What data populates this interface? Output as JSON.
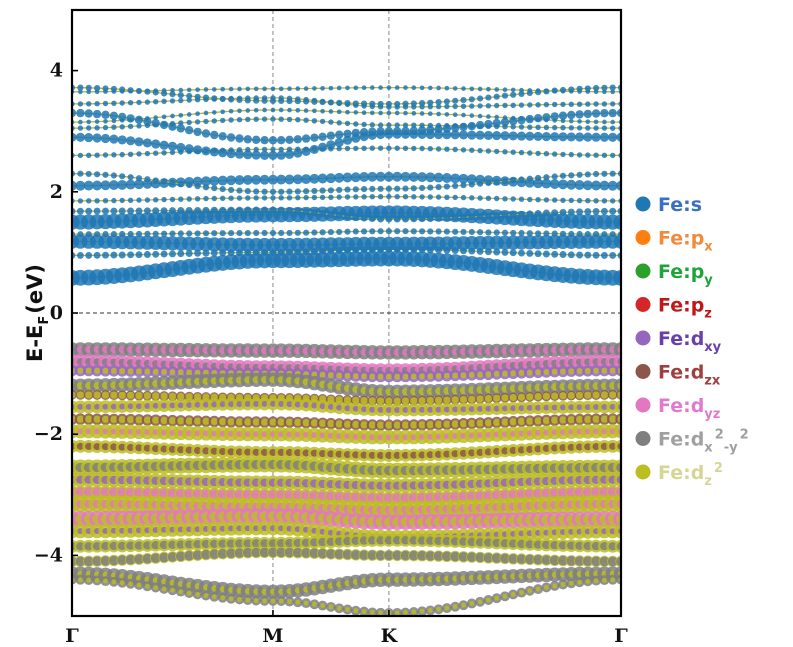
{
  "chart_data": {
    "type": "scatter",
    "subtype": "projected band structure (fat bands)",
    "ylabel": "E-E_F (eV)",
    "ylabel_parts": {
      "main": "E-E",
      "sub": "F",
      "unit": "(eV)"
    },
    "ylim": [
      -5,
      5
    ],
    "yticks": [
      -4,
      -2,
      0,
      2,
      4
    ],
    "ytick_labels": [
      "−4",
      "−2",
      "0",
      "2",
      "4"
    ],
    "kpath": {
      "labels": [
        "Γ",
        "M",
        "K",
        "Γ"
      ],
      "positions": [
        0,
        1,
        1.577,
        2.732
      ]
    },
    "fermi_level": 0,
    "grid": "dashed vertical lines at M and K; dashed horizontal line at 0",
    "band_line_color": "#b5b53a",
    "legend": {
      "placement": "right, outside",
      "entries": [
        {
          "label": "Fe:s",
          "base": "Fe:s",
          "sub": "",
          "marker_color": "#1f77b4",
          "text_color": "#3a6fc4"
        },
        {
          "label": "Fe:p_x",
          "base": "Fe:p",
          "sub": "x",
          "marker_color": "#ff7f0e",
          "text_color": "#f08a3c"
        },
        {
          "label": "Fe:p_y",
          "base": "Fe:p",
          "sub": "y",
          "marker_color": "#2ca02c",
          "text_color": "#1fa43a"
        },
        {
          "label": "Fe:p_z",
          "base": "Fe:p",
          "sub": "z",
          "marker_color": "#d62728",
          "text_color": "#c01818"
        },
        {
          "label": "Fe:d_xy",
          "base": "Fe:d",
          "sub": "xy",
          "marker_color": "#9467bd",
          "text_color": "#6a3fa8"
        },
        {
          "label": "Fe:d_zx",
          "base": "Fe:d",
          "sub": "zx",
          "marker_color": "#8c564b",
          "text_color": "#a03f3f"
        },
        {
          "label": "Fe:d_yz",
          "base": "Fe:d",
          "sub": "yz",
          "marker_color": "#e377c2",
          "text_color": "#e07ad0"
        },
        {
          "label": "Fe:d_x2-y2",
          "base": "Fe:d",
          "sub": "x",
          "sup1": "2",
          "sub2": "-y",
          "sup2": "2",
          "marker_color": "#7f7f7f",
          "text_color": "#a0a0a0"
        },
        {
          "label": "Fe:d_z2",
          "base": "Fe:d",
          "sub": "z",
          "sup1": "2",
          "marker_color": "#bcbd22",
          "text_color": "#d6d694"
        }
      ]
    },
    "bands": [
      {
        "nodes": [
          0.58,
          0.87,
          0.9,
          0.58
        ],
        "weights": {
          "s": 0.9
        }
      },
      {
        "nodes": [
          0.95,
          1.0,
          1.05,
          0.95
        ],
        "weights": {
          "s": 0.3
        }
      },
      {
        "nodes": [
          1.18,
          1.12,
          1.14,
          1.18
        ],
        "weights": {
          "s": 0.8
        }
      },
      {
        "nodes": [
          1.3,
          1.32,
          1.35,
          1.3
        ],
        "weights": {
          "s": 0.25
        }
      },
      {
        "nodes": [
          1.5,
          1.62,
          1.65,
          1.5
        ],
        "weights": {
          "s": 0.85
        }
      },
      {
        "nodes": [
          1.68,
          1.7,
          1.55,
          1.68
        ],
        "weights": {
          "s": 0.3
        }
      },
      {
        "nodes": [
          1.85,
          1.9,
          1.92,
          1.85
        ],
        "weights": {
          "s": 0.2
        }
      },
      {
        "nodes": [
          2.1,
          2.2,
          2.25,
          2.1
        ],
        "weights": {
          "s": 0.5
        }
      },
      {
        "nodes": [
          2.3,
          2.0,
          2.05,
          2.3
        ],
        "weights": {
          "s": 0.25
        }
      },
      {
        "nodes": [
          2.6,
          2.7,
          2.72,
          2.6
        ],
        "weights": {
          "s": 0.2
        }
      },
      {
        "nodes": [
          2.9,
          2.6,
          2.95,
          2.9
        ],
        "weights": {
          "s": 0.45
        }
      },
      {
        "nodes": [
          3.05,
          3.2,
          3.1,
          3.05
        ],
        "weights": {
          "s": 0.2
        }
      },
      {
        "nodes": [
          3.15,
          3.35,
          3.3,
          3.15
        ],
        "weights": {
          "s": 0.15
        }
      },
      {
        "nodes": [
          3.3,
          2.85,
          3.0,
          3.3
        ],
        "weights": {
          "s": 0.4
        }
      },
      {
        "nodes": [
          3.45,
          3.55,
          3.4,
          3.45
        ],
        "weights": {
          "s": 0.2
        }
      },
      {
        "nodes": [
          3.65,
          3.7,
          3.72,
          3.65
        ],
        "weights": {
          "s": 0.15
        }
      },
      {
        "nodes": [
          3.72,
          3.5,
          3.45,
          3.72
        ],
        "weights": {
          "s": 0.25
        }
      },
      {
        "nodes": [
          -0.6,
          -0.62,
          -0.65,
          -0.6
        ],
        "weights": {
          "dx2y2": 0.8,
          "dyz": 0.4
        }
      },
      {
        "nodes": [
          -0.8,
          -0.9,
          -0.95,
          -0.8
        ],
        "weights": {
          "dyz": 0.8,
          "dx2y2": 0.4
        }
      },
      {
        "nodes": [
          -0.95,
          -1.0,
          -1.05,
          -0.95
        ],
        "weights": {
          "dxy": 0.6,
          "dz2": 0.3
        }
      },
      {
        "nodes": [
          -1.2,
          -1.1,
          -1.3,
          -1.2
        ],
        "weights": {
          "dx2y2": 0.8,
          "dz2": 0.4
        }
      },
      {
        "nodes": [
          -1.35,
          -1.4,
          -1.45,
          -1.35
        ],
        "weights": {
          "dzx": 0.5,
          "dz2": 0.4
        }
      },
      {
        "nodes": [
          -1.55,
          -1.5,
          -1.6,
          -1.55
        ],
        "weights": {
          "dz2": 0.7,
          "dxy": 0.3
        }
      },
      {
        "nodes": [
          -1.75,
          -1.8,
          -1.85,
          -1.75
        ],
        "weights": {
          "dzx": 0.6,
          "dz2": 0.4
        }
      },
      {
        "nodes": [
          -1.95,
          -2.0,
          -2.05,
          -1.95
        ],
        "weights": {
          "dz2": 0.8,
          "dyz": 0.3
        }
      },
      {
        "nodes": [
          -2.2,
          -2.3,
          -2.35,
          -2.2
        ],
        "weights": {
          "dz2": 0.7,
          "dzx": 0.4
        }
      },
      {
        "nodes": [
          -2.55,
          -2.5,
          -2.6,
          -2.55
        ],
        "weights": {
          "dz2": 0.9,
          "dx2y2": 0.6
        }
      },
      {
        "nodes": [
          -2.75,
          -2.8,
          -2.85,
          -2.75
        ],
        "weights": {
          "dz2": 0.8,
          "dxy": 0.5
        }
      },
      {
        "nodes": [
          -2.95,
          -3.0,
          -3.05,
          -2.95
        ],
        "weights": {
          "dz2": 0.7,
          "dyz": 0.6
        }
      },
      {
        "nodes": [
          -3.15,
          -3.2,
          -3.25,
          -3.15
        ],
        "weights": {
          "dz2": 1.0,
          "dyz": 0.5
        }
      },
      {
        "nodes": [
          -3.4,
          -3.35,
          -3.45,
          -3.4
        ],
        "weights": {
          "dyz": 0.9,
          "dz2": 0.6
        }
      },
      {
        "nodes": [
          -3.6,
          -3.55,
          -3.7,
          -3.6
        ],
        "weights": {
          "dz2": 0.8,
          "dxy": 0.3
        }
      },
      {
        "nodes": [
          -3.85,
          -3.8,
          -3.75,
          -3.85
        ],
        "weights": {
          "dz2": 0.7,
          "dx2y2": 0.5
        }
      },
      {
        "nodes": [
          -4.1,
          -3.95,
          -4.0,
          -4.1
        ],
        "weights": {
          "dz2": 0.6,
          "dx2y2": 0.6
        }
      },
      {
        "nodes": [
          -4.3,
          -4.6,
          -4.4,
          -4.3
        ],
        "weights": {
          "dx2y2": 0.8,
          "dz2": 0.3
        }
      },
      {
        "nodes": [
          -4.4,
          -4.75,
          -4.95,
          -4.4
        ],
        "weights": {
          "dx2y2": 0.5,
          "dz2": 0.2
        }
      }
    ]
  }
}
